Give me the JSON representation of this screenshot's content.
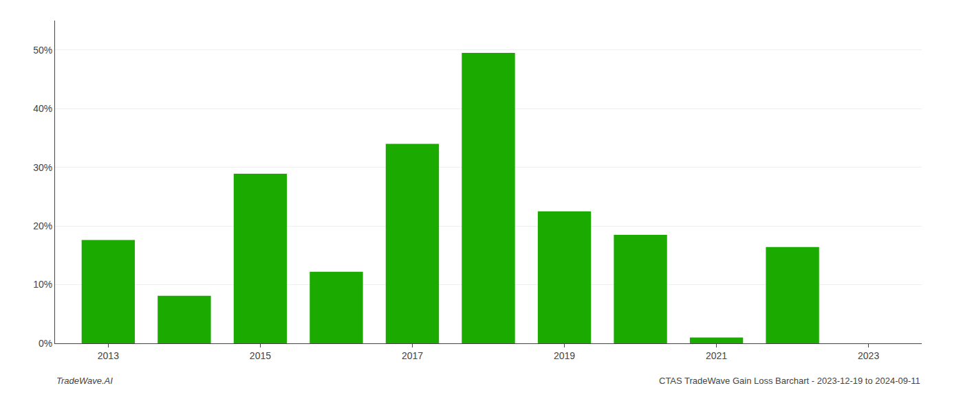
{
  "chart_data": {
    "type": "bar",
    "title": "CTAS TradeWave Gain Loss Barchart - 2023-12-19 to 2024-09-11",
    "annotations": [
      {
        "text": "TradeWave.AI"
      }
    ],
    "x": [
      2013,
      2014,
      2015,
      2016,
      2017,
      2018,
      2019,
      2020,
      2021,
      2022
    ],
    "values": [
      0.176,
      0.081,
      0.289,
      0.122,
      0.34,
      0.495,
      0.225,
      0.185,
      0.01,
      0.164
    ],
    "color": "#1aaa00",
    "xlim": [
      2012.3,
      2023.7
    ],
    "xticks": [
      2013,
      2015,
      2017,
      2019,
      2021,
      2023
    ],
    "ylim": [
      0,
      0.55
    ],
    "yticks": [
      {
        "value": 0.0,
        "label": "0%"
      },
      {
        "value": 0.1,
        "label": "10%"
      },
      {
        "value": 0.2,
        "label": "20%"
      },
      {
        "value": 0.3,
        "label": "30%"
      },
      {
        "value": 0.4,
        "label": "40%"
      },
      {
        "value": 0.5,
        "label": "50%"
      }
    ],
    "grid": true
  }
}
